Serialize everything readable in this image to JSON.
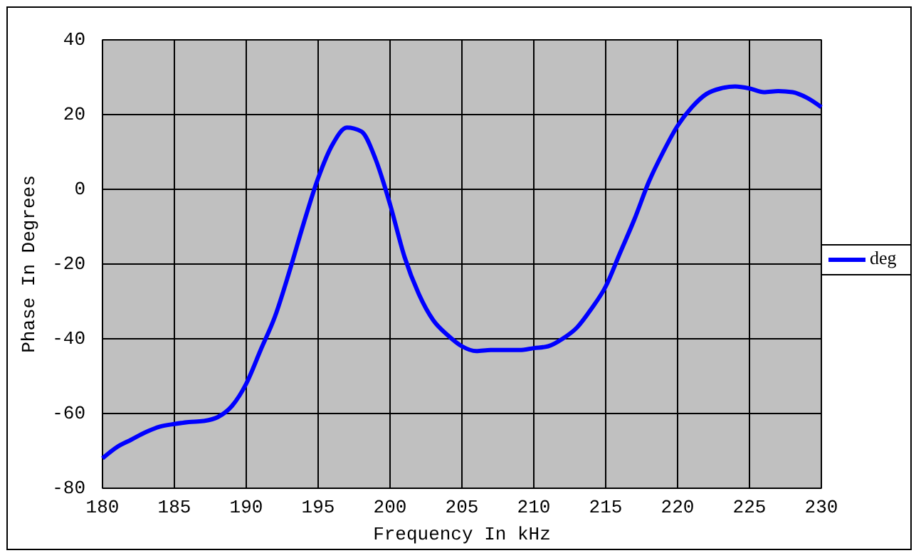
{
  "chart_data": {
    "type": "line",
    "xlabel": "Frequency In kHz",
    "ylabel": "Phase In Degrees",
    "x": [
      180,
      181,
      182,
      183,
      184,
      185,
      186,
      187,
      188,
      189,
      190,
      191,
      192,
      193,
      194,
      195,
      196,
      197,
      198,
      199,
      200,
      201,
      202,
      203,
      204,
      205,
      206,
      207,
      208,
      209,
      210,
      211,
      212,
      213,
      214,
      215,
      216,
      217,
      218,
      219,
      220,
      221,
      222,
      223,
      224,
      225,
      226,
      227,
      228,
      229,
      230
    ],
    "series": [
      {
        "name": "deg",
        "color": "#0000ff",
        "values": [
          -72,
          -69,
          -67,
          -65,
          -63.5,
          -62.8,
          -62.3,
          -62,
          -61,
          -58,
          -52,
          -43,
          -34,
          -22,
          -9,
          3,
          12,
          16.5,
          15.5,
          8,
          -4,
          -18,
          -28,
          -35,
          -39,
          -42,
          -43.3,
          -43,
          -43,
          -43,
          -42.5,
          -42,
          -40,
          -37,
          -32,
          -26,
          -17,
          -8,
          2,
          10,
          17,
          22,
          25.5,
          27,
          27.5,
          27,
          26,
          26.3,
          26,
          24.5,
          22
        ]
      }
    ],
    "xlim": [
      180,
      230
    ],
    "xticks": [
      180,
      185,
      190,
      195,
      200,
      205,
      210,
      215,
      220,
      225,
      230
    ],
    "ylim": [
      -80,
      40
    ],
    "yticks": [
      -80,
      -60,
      -40,
      -20,
      0,
      20,
      40
    ],
    "grid": true,
    "legend": "right",
    "marker": "none",
    "line_style": "solid"
  }
}
